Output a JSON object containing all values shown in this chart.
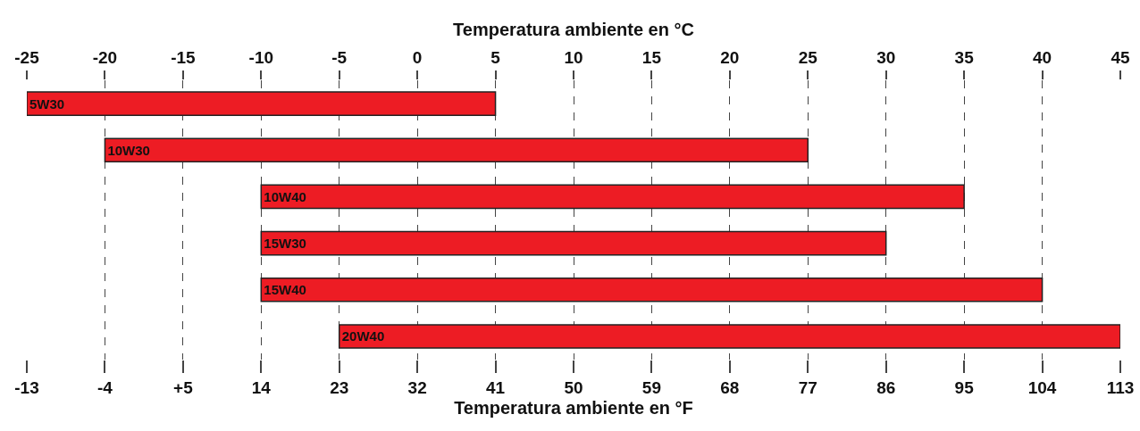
{
  "chart_data": {
    "type": "bar",
    "orientation": "horizontal",
    "xlabel": "Temperatura ambiente en °C",
    "x2label": "Temperatura ambiente en °F",
    "categories": [
      "5W30",
      "10W30",
      "10W40",
      "15W30",
      "15W40",
      "20W40"
    ],
    "base": [
      -25,
      -20,
      -10,
      -10,
      -10,
      -5
    ],
    "values": [
      30,
      45,
      45,
      40,
      50,
      50
    ],
    "color": "#ed1c24",
    "xlim": [
      -25,
      45
    ],
    "xticks": [
      -25,
      -20,
      -15,
      -10,
      -5,
      0,
      5,
      10,
      15,
      20,
      25,
      30,
      35,
      40,
      45
    ],
    "x2lim": [
      -13,
      113
    ],
    "x2ticks": [
      -13,
      -4,
      {
        "value": 5,
        "label": "+5"
      },
      14,
      23,
      32,
      41,
      50,
      59,
      68,
      77,
      86,
      95,
      104,
      113
    ],
    "grid": "x",
    "tick_labels": "x"
  }
}
